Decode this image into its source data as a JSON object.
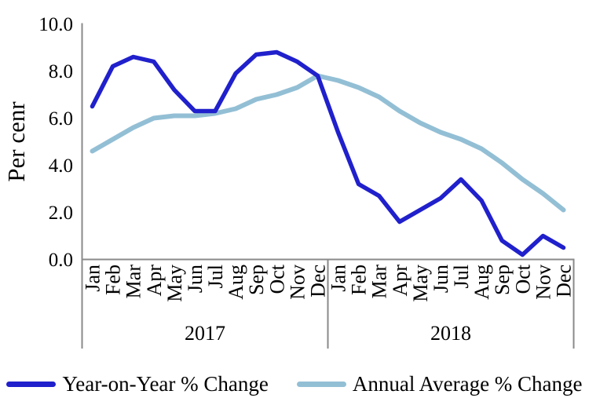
{
  "chart_data": {
    "type": "line",
    "title": "",
    "ylabel": "Per cenr",
    "ylim": [
      0.0,
      10.0
    ],
    "ytick_labels": [
      "0.0",
      "2.0",
      "4.0",
      "6.0",
      "8.0",
      "10.0"
    ],
    "grid": false,
    "legend_position": "bottom",
    "x_month_labels": [
      "Jan",
      "Feb",
      "Mar",
      "Apr",
      "May",
      "Jun",
      "Jul",
      "Aug",
      "Sep",
      "Oct",
      "Nov",
      "Dec"
    ],
    "x_year_groups": [
      "2017",
      "2018"
    ],
    "axis_color": "#8A8A8A",
    "text_color": "#000000",
    "series": [
      {
        "name": "Year-on-Year % Change",
        "color": "#2020CC",
        "values": [
          6.5,
          8.2,
          8.6,
          8.4,
          7.2,
          6.3,
          6.3,
          7.9,
          8.7,
          8.8,
          8.4,
          7.8,
          5.4,
          3.2,
          2.7,
          1.6,
          2.1,
          2.6,
          3.4,
          2.5,
          0.8,
          0.2,
          1.0,
          0.5
        ]
      },
      {
        "name": "Annual Average % Change",
        "color": "#93BFD5",
        "values": [
          4.6,
          5.1,
          5.6,
          6.0,
          6.1,
          6.1,
          6.2,
          6.4,
          6.8,
          7.0,
          7.3,
          7.8,
          7.6,
          7.3,
          6.9,
          6.3,
          5.8,
          5.4,
          5.1,
          4.7,
          4.1,
          3.4,
          2.8,
          2.1
        ]
      }
    ]
  }
}
